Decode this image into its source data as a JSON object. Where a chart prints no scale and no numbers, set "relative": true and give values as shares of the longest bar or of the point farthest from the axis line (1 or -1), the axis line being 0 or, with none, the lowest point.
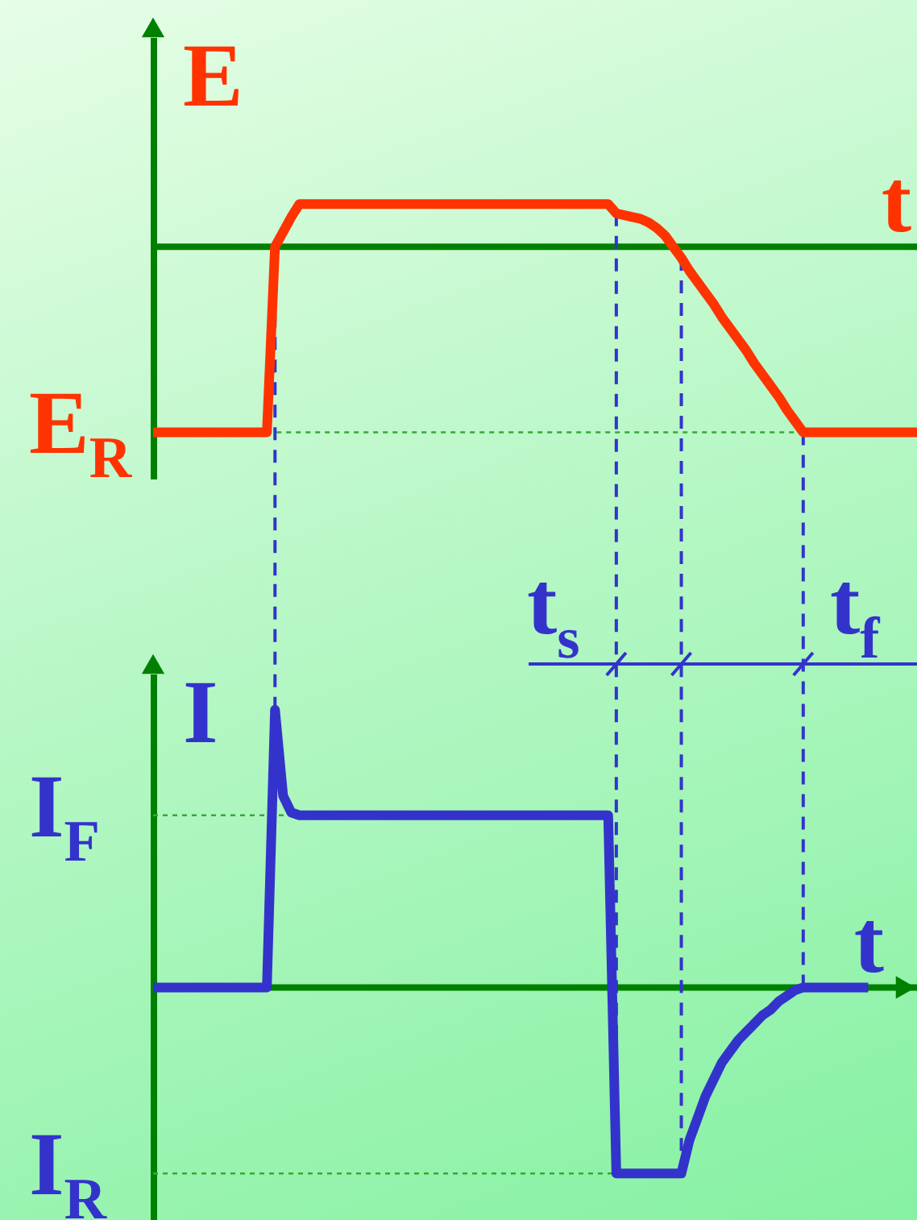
{
  "chart_data": [
    {
      "type": "line",
      "ylabel": "E",
      "xlabel": "t",
      "relative": true,
      "grid": "x",
      "categories": [
        null,
        null,
        null,
        null,
        null,
        null,
        null,
        null,
        null,
        null,
        null,
        null,
        null,
        null,
        null,
        null,
        null,
        null,
        null,
        null,
        null,
        null,
        null,
        null,
        null,
        null,
        null,
        null,
        null,
        null,
        null,
        null,
        null,
        null,
        null,
        null,
        null,
        null,
        null,
        null,
        null,
        null,
        null,
        null,
        null,
        null,
        null,
        null,
        null,
        null,
        null,
        null,
        null,
        null,
        null,
        null,
        null,
        null,
        null,
        null,
        null,
        null,
        null,
        null,
        null,
        null,
        null,
        null,
        null,
        null,
        null,
        null,
        null,
        null,
        null,
        null,
        null,
        null,
        null,
        null,
        null,
        null,
        null,
        null,
        null,
        null,
        null,
        null,
        null,
        null,
        null,
        null,
        null,
        null,
        null
      ],
      "series": [
        {
          "color": "#ff3300",
          "values": [
            -1,
            -1,
            -1,
            -1,
            -1,
            -1,
            -1,
            -1,
            -1,
            -1,
            -1,
            -1,
            -1,
            -1,
            -1,
            0,
            0.08,
            0.16,
            0.23,
            0.23,
            0.23,
            0.23,
            0.23,
            0.23,
            0.23,
            0.23,
            0.23,
            0.23,
            0.23,
            0.23,
            0.23,
            0.23,
            0.23,
            0.23,
            0.23,
            0.23,
            0.23,
            0.23,
            0.23,
            0.23,
            0.23,
            0.23,
            0.23,
            0.23,
            0.23,
            0.23,
            0.23,
            0.23,
            0.23,
            0.23,
            0.23,
            0.23,
            0.23,
            0.23,
            0.23,
            0.23,
            0.23,
            0.18,
            0.17,
            0.16,
            0.15,
            0.13,
            0.1,
            0.06,
            0,
            -0.06,
            -0.13,
            -0.19,
            -0.25,
            -0.31,
            -0.38,
            -0.44,
            -0.5,
            -0.56,
            -0.63,
            -0.69,
            -0.75,
            -0.81,
            -0.88,
            -0.94,
            -1,
            -1,
            -1,
            -1,
            -1,
            -1,
            -1,
            -1,
            -1,
            -1,
            -1,
            -1,
            -1,
            -1,
            -1
          ]
        }
      ],
      "ref_lines": [
        {
          "axis": "y",
          "value": 0,
          "color": "#008000",
          "line_style": "solid"
        },
        {
          "axis": "y",
          "value": -1,
          "label": "E$_{R}$",
          "color": "#33aa33",
          "line_style": "dotted"
        }
      ]
    },
    {
      "type": "line",
      "ylabel": "I",
      "xlabel": "t",
      "relative": true,
      "grid": "x",
      "categories": [
        null,
        null,
        null,
        null,
        null,
        null,
        null,
        null,
        null,
        null,
        null,
        null,
        null,
        null,
        null,
        null,
        null,
        null,
        null,
        null,
        null,
        null,
        null,
        null,
        null,
        null,
        null,
        null,
        null,
        null,
        null,
        null,
        null,
        null,
        null,
        null,
        null,
        null,
        null,
        null,
        null,
        null,
        null,
        null,
        null,
        null,
        null,
        null,
        null,
        null,
        null,
        null,
        null,
        null,
        null,
        null,
        null,
        null,
        null,
        null,
        null,
        null,
        null,
        null,
        null,
        null,
        null,
        null,
        null,
        null,
        null,
        null,
        null,
        null,
        null,
        null,
        null,
        null,
        null,
        null,
        null,
        null,
        null,
        null,
        null,
        null,
        null,
        null,
        null,
        null,
        null,
        null,
        null,
        null,
        null
      ],
      "series": [
        {
          "color": "#3333cc",
          "values": [
            0,
            0,
            0,
            0,
            0,
            0,
            0,
            0,
            0,
            0,
            0,
            0,
            0,
            0,
            0,
            1,
            0.69,
            0.63,
            0.62,
            0.62,
            0.62,
            0.62,
            0.62,
            0.62,
            0.62,
            0.62,
            0.62,
            0.62,
            0.62,
            0.62,
            0.62,
            0.62,
            0.62,
            0.62,
            0.62,
            0.62,
            0.62,
            0.62,
            0.62,
            0.62,
            0.62,
            0.62,
            0.62,
            0.62,
            0.62,
            0.62,
            0.62,
            0.62,
            0.62,
            0.62,
            0.62,
            0.62,
            0.62,
            0.62,
            0.62,
            0.62,
            0.62,
            -0.67,
            -0.67,
            -0.67,
            -0.67,
            -0.67,
            -0.67,
            -0.67,
            -0.67,
            -0.67,
            -0.55,
            -0.47,
            -0.39,
            -0.33,
            -0.27,
            -0.23,
            -0.19,
            -0.16,
            -0.13,
            -0.1,
            -0.08,
            -0.05,
            -0.03,
            -0.01,
            0,
            0,
            0,
            0,
            0,
            0,
            0,
            0,
            0,
            null,
            null,
            null,
            null,
            null,
            null
          ]
        }
      ],
      "ref_lines": [
        {
          "axis": "y",
          "value": 0,
          "color": "#008000",
          "line_style": "solid"
        },
        {
          "axis": "y",
          "value": 0.62,
          "label": "I$_{F}$",
          "color": "#33aa33",
          "line_style": "dotted"
        },
        {
          "axis": "y",
          "value": -0.67,
          "label": "I$_{R}$",
          "color": "#33aa33",
          "line_style": "dotted"
        }
      ],
      "annotations": [
        "t$_{s}$",
        "t$_{f}$"
      ]
    }
  ]
}
